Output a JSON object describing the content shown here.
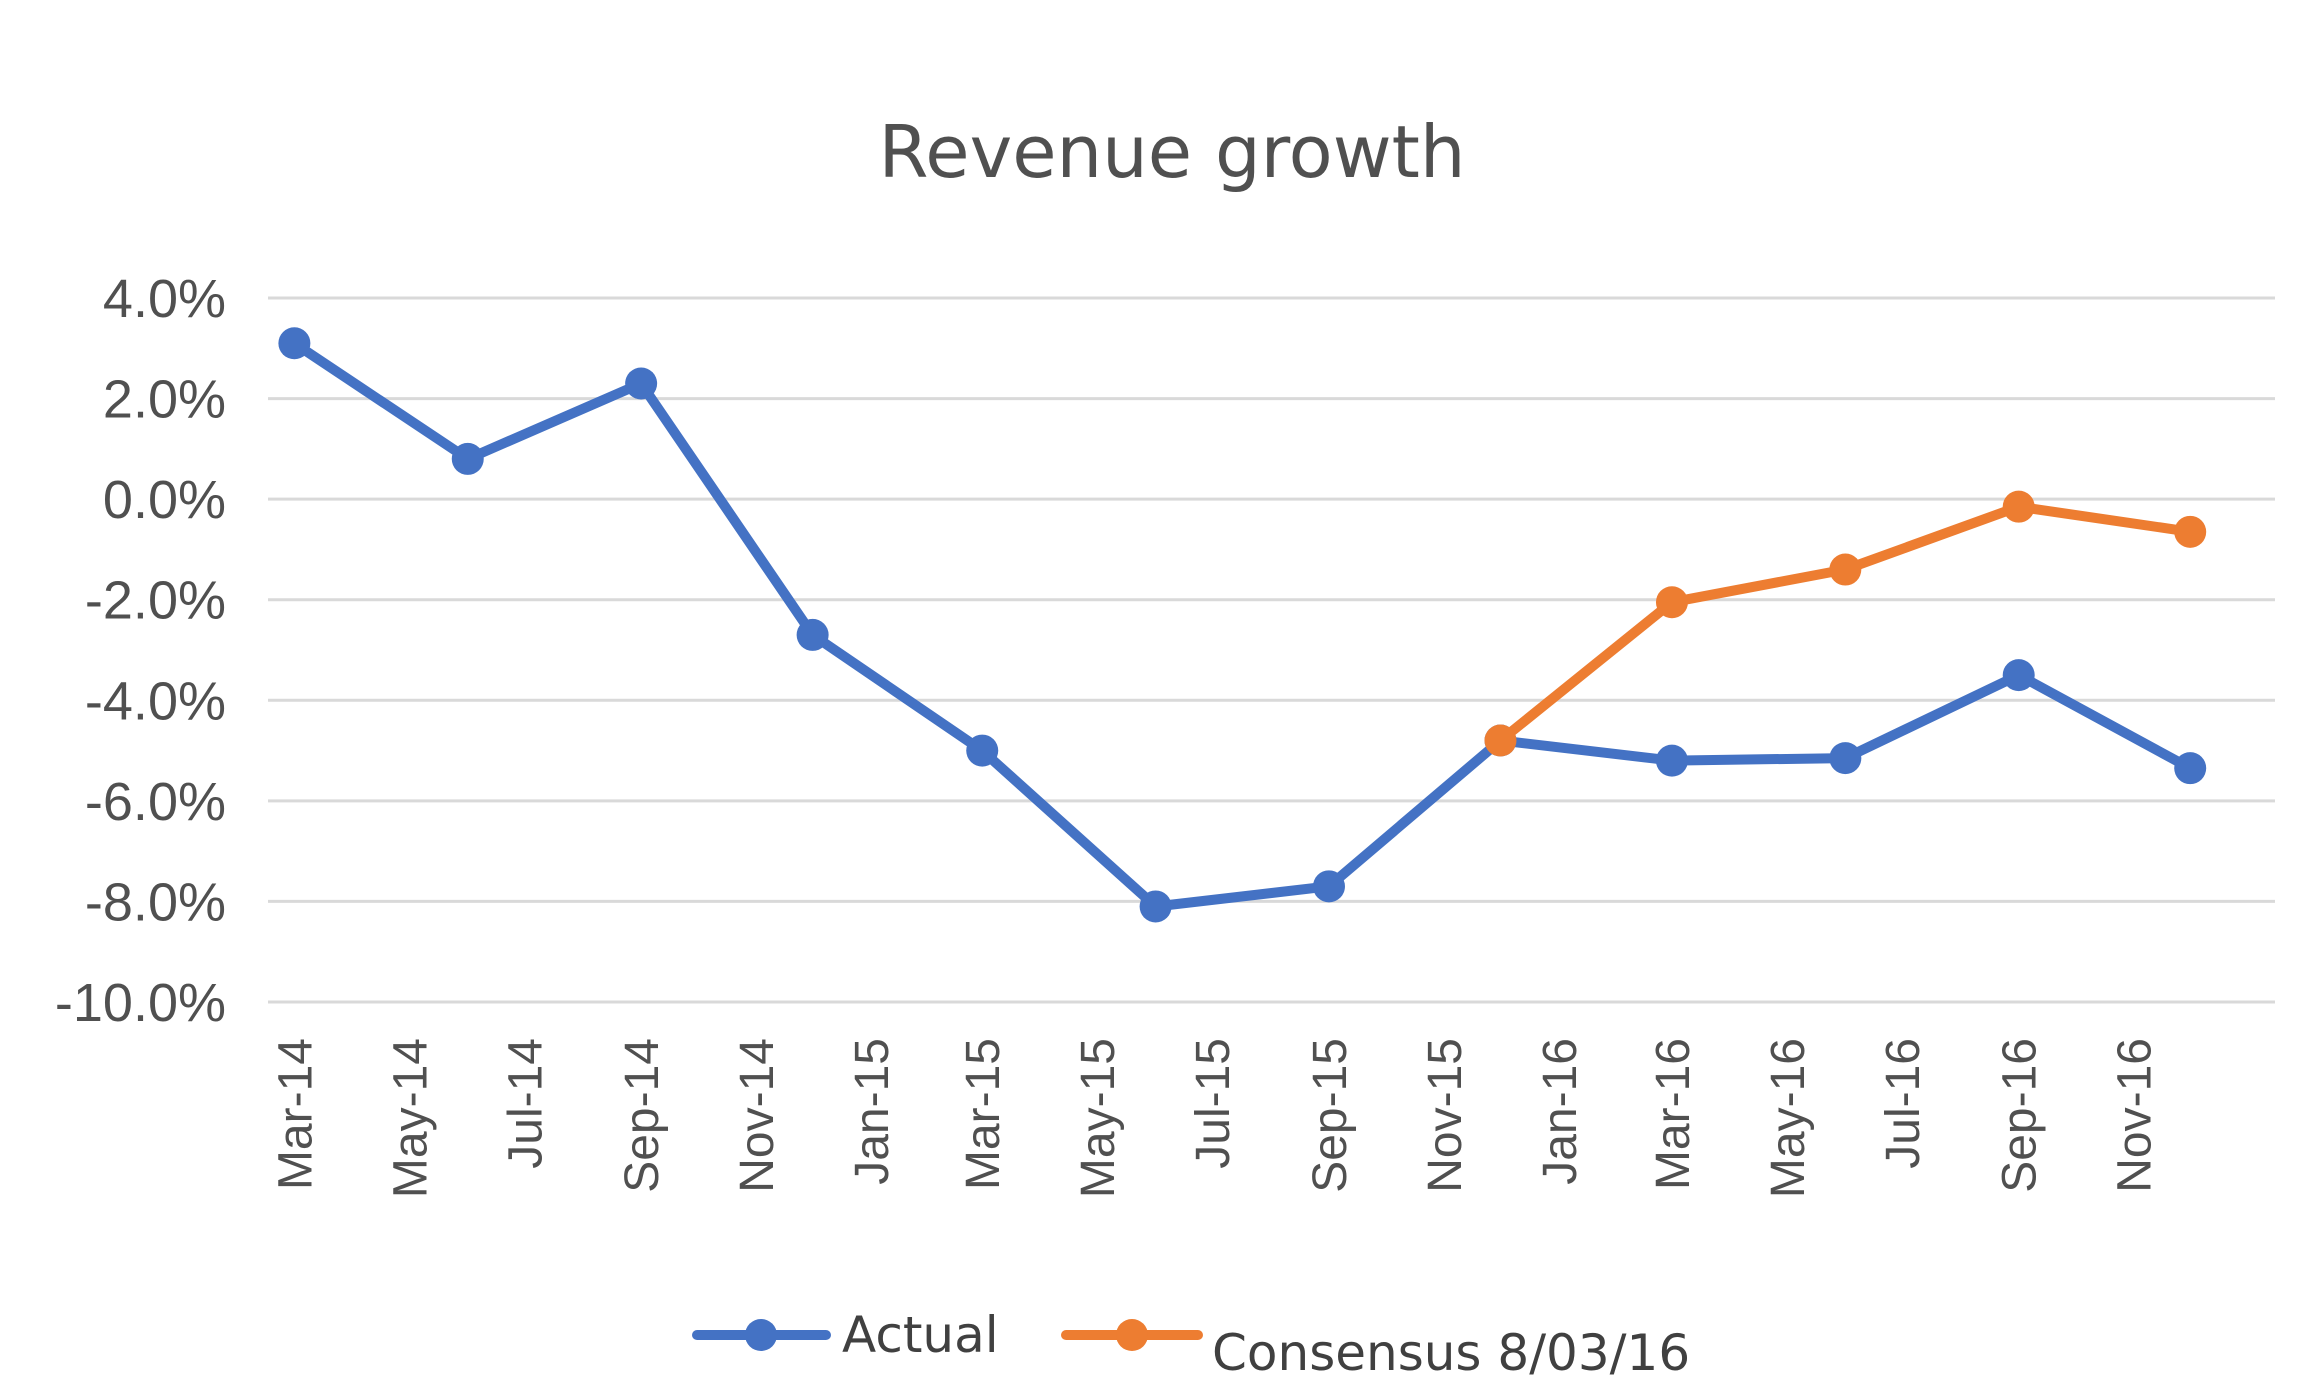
{
  "chart_data": {
    "type": "line",
    "title": "Revenue growth",
    "xlabel": "",
    "ylabel": "",
    "x_ticks": [
      "Mar-14",
      "May-14",
      "Jul-14",
      "Sep-14",
      "Nov-14",
      "Jan-15",
      "Mar-15",
      "May-15",
      "Jul-15",
      "Sep-15",
      "Nov-15",
      "Jan-16",
      "Mar-16",
      "May-16",
      "Jul-16",
      "Sep-16",
      "Nov-16"
    ],
    "x_range": [
      "2014-02-15",
      "2017-01-15"
    ],
    "y_ticks": [
      "4.0%",
      "2.0%",
      "0.0%",
      "-2.0%",
      "-4.0%",
      "-6.0%",
      "-8.0%",
      "-10.0%"
    ],
    "ylim": [
      -10,
      4
    ],
    "y_unit": "%",
    "grid": true,
    "legend_position": "bottom",
    "series": [
      {
        "name": "Actual",
        "color": "#4472C4",
        "points": [
          {
            "x": "2014-03-01",
            "y": 3.1
          },
          {
            "x": "2014-06-01",
            "y": 0.8
          },
          {
            "x": "2014-09-01",
            "y": 2.3
          },
          {
            "x": "2014-12-01",
            "y": -2.7
          },
          {
            "x": "2015-03-01",
            "y": -5.0
          },
          {
            "x": "2015-06-01",
            "y": -8.1
          },
          {
            "x": "2015-09-01",
            "y": -7.7
          },
          {
            "x": "2015-12-01",
            "y": -4.8
          },
          {
            "x": "2016-03-01",
            "y": -5.2
          },
          {
            "x": "2016-06-01",
            "y": -5.15
          },
          {
            "x": "2016-09-01",
            "y": -3.5
          },
          {
            "x": "2016-12-01",
            "y": -5.35
          }
        ]
      },
      {
        "name": "Consensus 8/03/16",
        "color": "#ED7D31",
        "points": [
          {
            "x": "2015-12-01",
            "y": -4.8
          },
          {
            "x": "2016-03-01",
            "y": -2.05
          },
          {
            "x": "2016-06-01",
            "y": -1.4
          },
          {
            "x": "2016-09-01",
            "y": -0.15
          },
          {
            "x": "2016-12-01",
            "y": -0.65
          }
        ]
      }
    ]
  }
}
